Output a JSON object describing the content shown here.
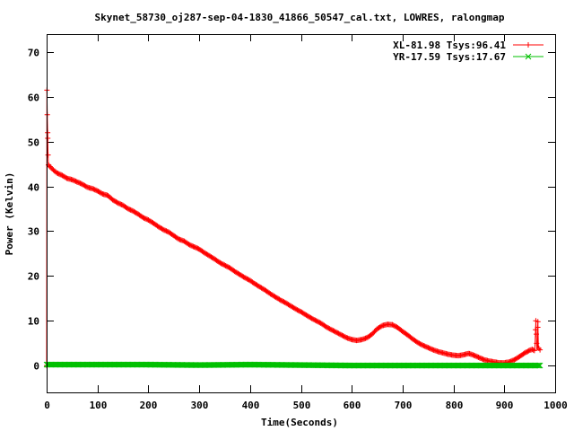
{
  "chart_data": {
    "type": "line",
    "title": "Skynet_58730_oj287-sep-04-1830_41866_50547_cal.txt, LOWRES, ralongmap",
    "xlabel": "Time(Seconds)",
    "ylabel": "Power (Kelvin)",
    "xlim": [
      0,
      1000
    ],
    "ylim": [
      -6,
      74
    ],
    "xticks": [
      0,
      100,
      200,
      300,
      400,
      500,
      600,
      700,
      800,
      900,
      1000
    ],
    "yticks": [
      0,
      10,
      20,
      30,
      40,
      50,
      60,
      70
    ],
    "grid": false,
    "legend_position": "top-right",
    "series": [
      {
        "name": "XL-81.98 Tsys:96.41",
        "color": "#ff0000",
        "marker": "+",
        "points": [
          [
            0,
            0
          ],
          [
            0.6,
            61.5
          ],
          [
            1.2,
            56
          ],
          [
            2,
            52
          ],
          [
            2.8,
            47
          ],
          [
            3.5,
            44.8
          ],
          [
            10,
            44
          ],
          [
            20,
            43
          ],
          [
            30,
            42.5
          ],
          [
            40,
            41.8
          ],
          [
            50,
            41.5
          ],
          [
            60,
            41
          ],
          [
            70,
            40.5
          ],
          [
            80,
            39.8
          ],
          [
            90,
            39.5
          ],
          [
            100,
            39
          ],
          [
            110,
            38.3
          ],
          [
            120,
            38
          ],
          [
            130,
            37
          ],
          [
            140,
            36.3
          ],
          [
            150,
            35.8
          ],
          [
            160,
            35
          ],
          [
            170,
            34.5
          ],
          [
            180,
            33.8
          ],
          [
            190,
            33
          ],
          [
            200,
            32.5
          ],
          [
            210,
            31.8
          ],
          [
            220,
            31
          ],
          [
            230,
            30.3
          ],
          [
            240,
            29.8
          ],
          [
            250,
            29
          ],
          [
            260,
            28.2
          ],
          [
            270,
            27.8
          ],
          [
            280,
            27
          ],
          [
            290,
            26.5
          ],
          [
            300,
            26
          ],
          [
            310,
            25.2
          ],
          [
            320,
            24.5
          ],
          [
            330,
            23.8
          ],
          [
            340,
            23
          ],
          [
            350,
            22.4
          ],
          [
            360,
            21.8
          ],
          [
            370,
            21
          ],
          [
            380,
            20.3
          ],
          [
            390,
            19.6
          ],
          [
            400,
            19
          ],
          [
            410,
            18.2
          ],
          [
            420,
            17.5
          ],
          [
            430,
            16.8
          ],
          [
            440,
            16
          ],
          [
            450,
            15.3
          ],
          [
            460,
            14.6
          ],
          [
            470,
            14
          ],
          [
            480,
            13.3
          ],
          [
            490,
            12.6
          ],
          [
            500,
            12
          ],
          [
            510,
            11.3
          ],
          [
            520,
            10.6
          ],
          [
            530,
            10
          ],
          [
            540,
            9.4
          ],
          [
            550,
            8.6
          ],
          [
            560,
            8
          ],
          [
            570,
            7.4
          ],
          [
            580,
            6.8
          ],
          [
            590,
            6.2
          ],
          [
            600,
            5.8
          ],
          [
            610,
            5.6
          ],
          [
            620,
            5.8
          ],
          [
            630,
            6.2
          ],
          [
            640,
            7
          ],
          [
            650,
            8.2
          ],
          [
            660,
            8.9
          ],
          [
            670,
            9.2
          ],
          [
            680,
            9.1
          ],
          [
            690,
            8.5
          ],
          [
            700,
            7.6
          ],
          [
            710,
            6.8
          ],
          [
            720,
            5.9
          ],
          [
            730,
            5.1
          ],
          [
            740,
            4.5
          ],
          [
            750,
            4
          ],
          [
            760,
            3.5
          ],
          [
            770,
            3.1
          ],
          [
            780,
            2.8
          ],
          [
            790,
            2.5
          ],
          [
            800,
            2.3
          ],
          [
            810,
            2.2
          ],
          [
            820,
            2.4
          ],
          [
            830,
            2.7
          ],
          [
            840,
            2.3
          ],
          [
            850,
            1.8
          ],
          [
            860,
            1.3
          ],
          [
            870,
            1
          ],
          [
            880,
            0.8
          ],
          [
            890,
            0.6
          ],
          [
            900,
            0.6
          ],
          [
            910,
            0.8
          ],
          [
            920,
            1.3
          ],
          [
            930,
            2
          ],
          [
            940,
            2.8
          ],
          [
            950,
            3.4
          ],
          [
            955,
            3.6
          ],
          [
            960,
            3.3
          ],
          [
            962,
            10
          ],
          [
            963,
            7
          ],
          [
            964,
            3.6
          ],
          [
            965,
            3.5
          ],
          [
            966,
            9.8
          ],
          [
            967,
            4
          ],
          [
            970,
            3.5
          ],
          [
            972,
            3.6
          ]
        ]
      },
      {
        "name": "YR-17.59 Tsys:17.67",
        "color": "#00c000",
        "marker": "x",
        "points": [
          [
            0,
            0.2
          ],
          [
            100,
            0.2
          ],
          [
            200,
            0.2
          ],
          [
            300,
            0.1
          ],
          [
            400,
            0.2
          ],
          [
            500,
            0.1
          ],
          [
            600,
            0
          ],
          [
            700,
            0
          ],
          [
            800,
            0
          ],
          [
            900,
            0
          ],
          [
            972,
            0
          ]
        ]
      }
    ]
  }
}
